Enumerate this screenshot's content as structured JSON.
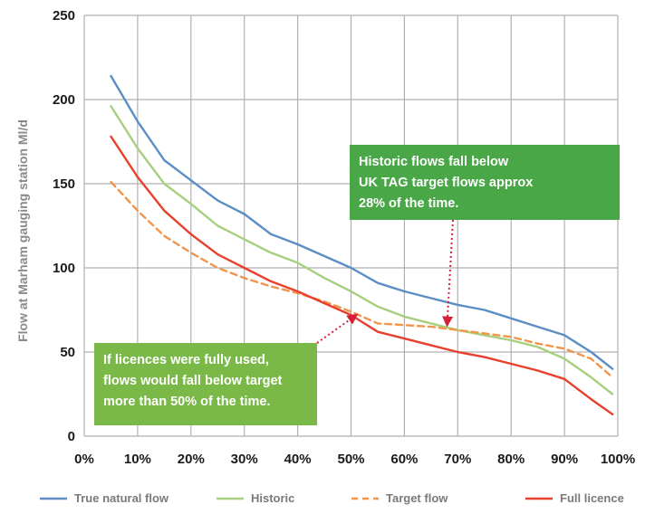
{
  "chart_data": {
    "type": "line",
    "title": "",
    "xlabel": "",
    "ylabel": "Flow at Marham gauging station Ml/d",
    "xlim": [
      0,
      100
    ],
    "ylim": [
      0,
      250
    ],
    "x_ticks": [
      "0%",
      "10%",
      "20%",
      "30%",
      "40%",
      "50%",
      "60%",
      "70%",
      "80%",
      "90%",
      "100%"
    ],
    "y_ticks": [
      "0",
      "50",
      "100",
      "150",
      "200",
      "250"
    ],
    "grid": true,
    "legend_position": "bottom",
    "series": [
      {
        "name": "True natural flow",
        "color": "#5b8ec4",
        "dash": "solid",
        "x": [
          5,
          10,
          15,
          20,
          25,
          30,
          35,
          40,
          45,
          50,
          55,
          60,
          65,
          70,
          75,
          80,
          85,
          90,
          95,
          99
        ],
        "y": [
          214,
          187,
          164,
          152,
          140,
          132,
          120,
          114,
          107,
          100,
          91,
          86,
          82,
          78,
          75,
          70,
          65,
          60,
          50,
          40
        ]
      },
      {
        "name": "Historic",
        "color": "#a6cf7e",
        "dash": "solid",
        "x": [
          5,
          10,
          15,
          20,
          25,
          30,
          35,
          40,
          45,
          50,
          55,
          60,
          65,
          70,
          75,
          80,
          85,
          90,
          95,
          99
        ],
        "y": [
          196,
          171,
          150,
          138,
          125,
          117,
          109,
          103,
          94,
          86,
          77,
          71,
          67,
          63,
          60,
          57,
          53,
          46,
          35,
          25
        ]
      },
      {
        "name": "Target flow",
        "color": "#f0954c",
        "dash": "dashed",
        "x": [
          5,
          10,
          15,
          20,
          25,
          30,
          35,
          40,
          45,
          50,
          55,
          60,
          65,
          70,
          75,
          80,
          85,
          90,
          95,
          99
        ],
        "y": [
          151,
          134,
          119,
          109,
          100,
          94,
          89,
          85,
          80,
          74,
          67,
          66,
          65,
          63,
          61,
          59,
          55,
          52,
          46,
          35
        ]
      },
      {
        "name": "Full licence",
        "color": "#e8402d",
        "dash": "solid",
        "x": [
          5,
          10,
          15,
          20,
          25,
          30,
          35,
          40,
          45,
          50,
          55,
          60,
          65,
          70,
          75,
          80,
          85,
          90,
          95,
          99
        ],
        "y": [
          178,
          154,
          134,
          120,
          108,
          100,
          92,
          86,
          79,
          72,
          62,
          58,
          54,
          50,
          47,
          43,
          39,
          34,
          22,
          13
        ]
      }
    ],
    "annotations": [
      {
        "lines": [
          "Historic flows fall below",
          "UK TAG target flows approx",
          "28% of the time."
        ],
        "color": "#4aa747",
        "points_to": [
          68,
          66
        ]
      },
      {
        "lines": [
          "If licences were fully used,",
          "flows would fall below target",
          "more than 50% of the time."
        ],
        "color": "#7ab948",
        "points_to": [
          51,
          72
        ]
      }
    ]
  }
}
